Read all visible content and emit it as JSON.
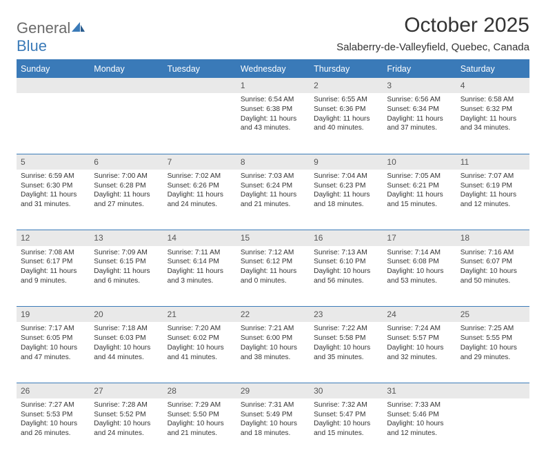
{
  "brand": {
    "name1": "General",
    "name2": "Blue"
  },
  "header": {
    "month_title": "October 2025",
    "location": "Salaberry-de-Valleyfield, Quebec, Canada"
  },
  "colors": {
    "header_blue": "#3a7ab8",
    "grey_row": "#e9e9e9",
    "text": "#333333",
    "logo_grey": "#6a6a6a"
  },
  "weekdays": [
    "Sunday",
    "Monday",
    "Tuesday",
    "Wednesday",
    "Thursday",
    "Friday",
    "Saturday"
  ],
  "weeks": [
    [
      null,
      null,
      null,
      {
        "n": "1",
        "sr": "6:54 AM",
        "ss": "6:38 PM",
        "dl": "11 hours and 43 minutes."
      },
      {
        "n": "2",
        "sr": "6:55 AM",
        "ss": "6:36 PM",
        "dl": "11 hours and 40 minutes."
      },
      {
        "n": "3",
        "sr": "6:56 AM",
        "ss": "6:34 PM",
        "dl": "11 hours and 37 minutes."
      },
      {
        "n": "4",
        "sr": "6:58 AM",
        "ss": "6:32 PM",
        "dl": "11 hours and 34 minutes."
      }
    ],
    [
      {
        "n": "5",
        "sr": "6:59 AM",
        "ss": "6:30 PM",
        "dl": "11 hours and 31 minutes."
      },
      {
        "n": "6",
        "sr": "7:00 AM",
        "ss": "6:28 PM",
        "dl": "11 hours and 27 minutes."
      },
      {
        "n": "7",
        "sr": "7:02 AM",
        "ss": "6:26 PM",
        "dl": "11 hours and 24 minutes."
      },
      {
        "n": "8",
        "sr": "7:03 AM",
        "ss": "6:24 PM",
        "dl": "11 hours and 21 minutes."
      },
      {
        "n": "9",
        "sr": "7:04 AM",
        "ss": "6:23 PM",
        "dl": "11 hours and 18 minutes."
      },
      {
        "n": "10",
        "sr": "7:05 AM",
        "ss": "6:21 PM",
        "dl": "11 hours and 15 minutes."
      },
      {
        "n": "11",
        "sr": "7:07 AM",
        "ss": "6:19 PM",
        "dl": "11 hours and 12 minutes."
      }
    ],
    [
      {
        "n": "12",
        "sr": "7:08 AM",
        "ss": "6:17 PM",
        "dl": "11 hours and 9 minutes."
      },
      {
        "n": "13",
        "sr": "7:09 AM",
        "ss": "6:15 PM",
        "dl": "11 hours and 6 minutes."
      },
      {
        "n": "14",
        "sr": "7:11 AM",
        "ss": "6:14 PM",
        "dl": "11 hours and 3 minutes."
      },
      {
        "n": "15",
        "sr": "7:12 AM",
        "ss": "6:12 PM",
        "dl": "11 hours and 0 minutes."
      },
      {
        "n": "16",
        "sr": "7:13 AM",
        "ss": "6:10 PM",
        "dl": "10 hours and 56 minutes."
      },
      {
        "n": "17",
        "sr": "7:14 AM",
        "ss": "6:08 PM",
        "dl": "10 hours and 53 minutes."
      },
      {
        "n": "18",
        "sr": "7:16 AM",
        "ss": "6:07 PM",
        "dl": "10 hours and 50 minutes."
      }
    ],
    [
      {
        "n": "19",
        "sr": "7:17 AM",
        "ss": "6:05 PM",
        "dl": "10 hours and 47 minutes."
      },
      {
        "n": "20",
        "sr": "7:18 AM",
        "ss": "6:03 PM",
        "dl": "10 hours and 44 minutes."
      },
      {
        "n": "21",
        "sr": "7:20 AM",
        "ss": "6:02 PM",
        "dl": "10 hours and 41 minutes."
      },
      {
        "n": "22",
        "sr": "7:21 AM",
        "ss": "6:00 PM",
        "dl": "10 hours and 38 minutes."
      },
      {
        "n": "23",
        "sr": "7:22 AM",
        "ss": "5:58 PM",
        "dl": "10 hours and 35 minutes."
      },
      {
        "n": "24",
        "sr": "7:24 AM",
        "ss": "5:57 PM",
        "dl": "10 hours and 32 minutes."
      },
      {
        "n": "25",
        "sr": "7:25 AM",
        "ss": "5:55 PM",
        "dl": "10 hours and 29 minutes."
      }
    ],
    [
      {
        "n": "26",
        "sr": "7:27 AM",
        "ss": "5:53 PM",
        "dl": "10 hours and 26 minutes."
      },
      {
        "n": "27",
        "sr": "7:28 AM",
        "ss": "5:52 PM",
        "dl": "10 hours and 24 minutes."
      },
      {
        "n": "28",
        "sr": "7:29 AM",
        "ss": "5:50 PM",
        "dl": "10 hours and 21 minutes."
      },
      {
        "n": "29",
        "sr": "7:31 AM",
        "ss": "5:49 PM",
        "dl": "10 hours and 18 minutes."
      },
      {
        "n": "30",
        "sr": "7:32 AM",
        "ss": "5:47 PM",
        "dl": "10 hours and 15 minutes."
      },
      {
        "n": "31",
        "sr": "7:33 AM",
        "ss": "5:46 PM",
        "dl": "10 hours and 12 minutes."
      },
      null
    ]
  ],
  "labels": {
    "sunrise": "Sunrise:",
    "sunset": "Sunset:",
    "daylight": "Daylight:"
  }
}
